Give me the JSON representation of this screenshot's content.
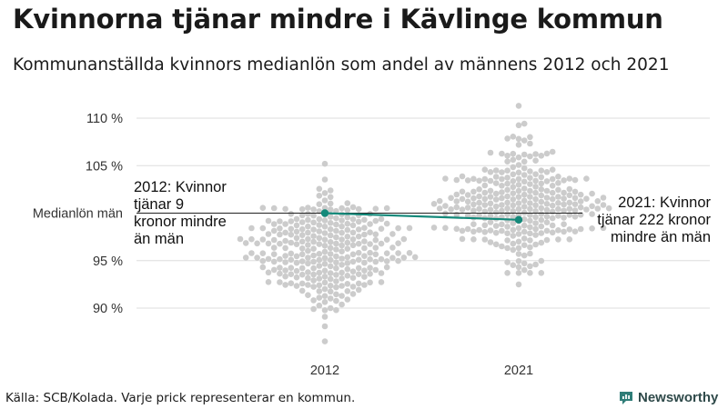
{
  "title": "Kvinnorna tjänar mindre i Kävlinge kommun",
  "subtitle": "Kommunanställda kvinnors medianlön som andel av männens 2012 och 2021",
  "source": "Källa: SCB/Kolada. Varje prick representerar en kommun.",
  "brand": {
    "name": "Newsworthy",
    "icon": "newsworthy-logo-icon"
  },
  "colors": {
    "highlight": "#14897a",
    "dots": "#cccccc",
    "grid": "#dddddd",
    "brand": "#2f7d78"
  },
  "annotations": {
    "y2012": [
      "2012: Kvinnor",
      "tjänar 9",
      "kronor mindre",
      "än män"
    ],
    "y2021": [
      "2021: Kvinnor",
      "tjänar 222 kronor",
      "mindre än män"
    ]
  },
  "chart_data": {
    "type": "scatter",
    "subtype": "beeswarm",
    "title": "Kvinnorna tjänar mindre i Kävlinge kommun",
    "categories": [
      "2012",
      "2021"
    ],
    "y_tick_labels": [
      "90 %",
      "95 %",
      "105 %",
      "110 %"
    ],
    "y_ticks": [
      90,
      95,
      105,
      110
    ],
    "reference_line": {
      "value": 100,
      "label": "Medianlön män"
    },
    "ylim": [
      86,
      113
    ],
    "grid": true,
    "distribution": [
      {
        "year": "2012",
        "median": 96,
        "min": 86.5,
        "max": 105.2,
        "approx_count": 290
      },
      {
        "year": "2021",
        "median": 101,
        "min": 92.5,
        "max": 111.3,
        "approx_count": 290
      }
    ],
    "series": [
      {
        "name": "Kävlinge kommun",
        "x": [
          "2012",
          "2021"
        ],
        "values": [
          100,
          99.3
        ]
      }
    ]
  }
}
